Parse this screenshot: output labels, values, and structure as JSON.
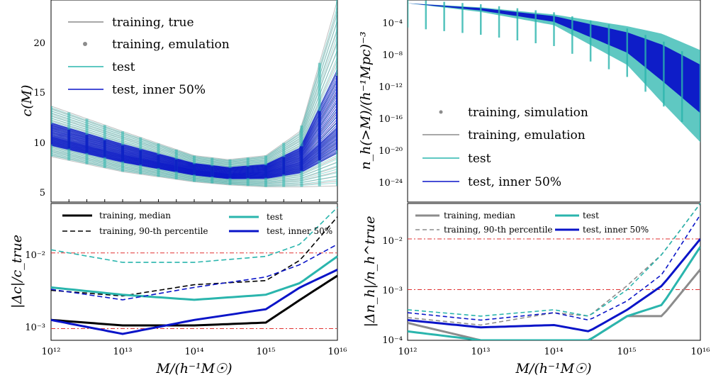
{
  "figure": {
    "xlabel": "M/(h⁻¹M☉)"
  },
  "colors": {
    "gray": "#8c8c8c",
    "teal": "#2ab5ad",
    "blue": "#0a14c8",
    "red": "#e03030",
    "black": "#000000"
  },
  "x_ticks": [
    "10¹²",
    "10¹³",
    "10¹⁴",
    "10¹⁵",
    "10¹⁶"
  ],
  "chart_data": [
    {
      "id": "c_of_M",
      "type": "line",
      "ylabel": "c(M)",
      "xscale": "log",
      "xlim": [
        1000000000000.0,
        1e+16
      ],
      "ylim": [
        4,
        24
      ],
      "yticks": [
        5,
        10,
        15,
        20
      ],
      "legend": [
        "training, true",
        "training, emulation",
        "test",
        "test, inner 50%"
      ],
      "series": [
        {
          "name": "test, inner 50% (center)",
          "x": [
            1000000000000.0,
            10000000000000.0,
            100000000000000.0,
            300000000000000.0,
            1000000000000000.0,
            3000000000000000.0,
            1e+16
          ],
          "y": [
            10.5,
            8.7,
            7.2,
            6.8,
            7.0,
            8.0,
            11.5
          ]
        },
        {
          "name": "test (upper envelope)",
          "x": [
            1000000000000.0,
            10000000000000.0,
            100000000000000.0,
            300000000000000.0,
            1000000000000000.0,
            3000000000000000.0,
            1e+16
          ],
          "y": [
            13.5,
            11.0,
            8.6,
            8.2,
            8.6,
            11,
            24
          ]
        },
        {
          "name": "test (lower envelope)",
          "x": [
            1000000000000.0,
            10000000000000.0,
            100000000000000.0,
            300000000000000.0,
            1000000000000000.0,
            3000000000000000.0,
            1e+16
          ],
          "y": [
            8.5,
            7.0,
            6.0,
            5.7,
            5.5,
            5.5,
            5.6
          ]
        }
      ]
    },
    {
      "id": "rel_err_c",
      "type": "line",
      "ylabel": "|Δc|/c_true",
      "xscale": "log",
      "yscale": "log",
      "xlim": [
        1000000000000.0,
        1e+16
      ],
      "ylim": [
        0.0007,
        0.045
      ],
      "ytick_labels": [
        "10⁻³",
        "10⁻²"
      ],
      "legend": [
        "training, median",
        "training, 90-th percentile",
        "test",
        "test, inner 50%"
      ],
      "series": [
        {
          "name": "training, median",
          "x": [
            1000000000000.0,
            10000000000000.0,
            100000000000000.0,
            1000000000000000.0,
            3000000000000000.0,
            1e+16
          ],
          "y": [
            0.0013,
            0.0011,
            0.0011,
            0.0012,
            0.0024,
            0.005
          ]
        },
        {
          "name": "training, 90-th percentile",
          "x": [
            1000000000000.0,
            10000000000000.0,
            100000000000000.0,
            1000000000000000.0,
            3000000000000000.0,
            1e+16
          ],
          "y": [
            0.0032,
            0.0027,
            0.0038,
            0.0043,
            0.008,
            0.03
          ]
        },
        {
          "name": "test",
          "x": [
            1000000000000.0,
            10000000000000.0,
            100000000000000.0,
            1000000000000000.0,
            3000000000000000.0,
            1e+16
          ],
          "y": [
            0.0035,
            0.0028,
            0.0024,
            0.0028,
            0.004,
            0.009
          ]
        },
        {
          "name": "test, inner 50%",
          "x": [
            1000000000000.0,
            10000000000000.0,
            100000000000000.0,
            1000000000000000.0,
            3000000000000000.0,
            1e+16
          ],
          "y": [
            0.0013,
            0.00085,
            0.0013,
            0.0018,
            0.0035,
            0.006
          ]
        },
        {
          "name": "test, 90-th percentile",
          "x": [
            1000000000000.0,
            10000000000000.0,
            100000000000000.0,
            1000000000000000.0,
            3000000000000000.0,
            1e+16
          ],
          "y": [
            0.011,
            0.0075,
            0.0075,
            0.009,
            0.013,
            0.04
          ]
        },
        {
          "name": "test, inner 50% (upper)",
          "x": [
            1000000000000.0,
            10000000000000.0,
            100000000000000.0,
            1000000000000000.0,
            3000000000000000.0,
            1e+16
          ],
          "y": [
            0.0033,
            0.0024,
            0.0035,
            0.0048,
            0.007,
            0.013
          ]
        }
      ],
      "hlines": [
        0.001,
        0.01
      ]
    },
    {
      "id": "n_h",
      "type": "line",
      "ylabel": "n_h(>M)/(h⁻¹Mpc)⁻³",
      "xscale": "log",
      "yscale": "log",
      "xlim": [
        1000000000000.0,
        1e+16
      ],
      "ylim": [
        1e-27,
        0.01
      ],
      "ytick_labels": [
        "10⁻⁴",
        "10⁻⁸",
        "10⁻¹²",
        "10⁻¹⁶",
        "10⁻²⁰",
        "10⁻²⁴"
      ],
      "legend": [
        "training, simulation",
        "training, emulation",
        "test",
        "test, inner 50%"
      ],
      "series": [
        {
          "name": "test, inner 50% (upper)",
          "x": [
            1000000000000.0,
            10000000000000.0,
            100000000000000.0,
            1000000000000000.0,
            3000000000000000.0,
            1e+16
          ],
          "y": [
            0.004,
            0.001,
            0.0001,
            1e-06,
            3e-08,
            1e-10
          ]
        },
        {
          "name": "test, inner 50% (lower)",
          "x": [
            1000000000000.0,
            10000000000000.0,
            100000000000000.0,
            1000000000000000.0,
            3000000000000000.0,
            1e+16
          ],
          "y": [
            0.004,
            0.0005,
            2e-05,
            3e-09,
            1e-12,
            1e-16
          ]
        }
      ]
    },
    {
      "id": "rel_err_nh",
      "type": "line",
      "ylabel": "|Δn_h|/n_h^true",
      "xscale": "log",
      "yscale": "log",
      "xlim": [
        1000000000000.0,
        1e+16
      ],
      "ylim": [
        0.0001,
        0.05
      ],
      "ytick_labels": [
        "10⁻⁴",
        "10⁻³",
        "10⁻²"
      ],
      "legend": [
        "training, median",
        "training, 90-th percentile",
        "test",
        "test, inner 50%"
      ],
      "series": [
        {
          "name": "training, median",
          "x": [
            1000000000000.0,
            10000000000000.0,
            100000000000000.0,
            300000000000000.0,
            1000000000000000.0,
            3000000000000000.0,
            1e+16
          ],
          "y": [
            0.00022,
            0.0001,
            0.0001,
            0.0001,
            0.0003,
            0.0003,
            0.0025
          ]
        },
        {
          "name": "training, 90-th percentile",
          "x": [
            1000000000000.0,
            10000000000000.0,
            100000000000000.0,
            300000000000000.0,
            1000000000000000.0,
            3000000000000000.0,
            1e+16
          ],
          "y": [
            0.00028,
            0.0002,
            0.00035,
            0.0003,
            0.0012,
            0.005,
            0.05
          ]
        },
        {
          "name": "test",
          "x": [
            1000000000000.0,
            10000000000000.0,
            100000000000000.0,
            300000000000000.0,
            1000000000000000.0,
            3000000000000000.0,
            1e+16
          ],
          "y": [
            0.00015,
            0.0001,
            0.0001,
            0.0001,
            0.0003,
            0.0005,
            0.007
          ]
        },
        {
          "name": "test, inner 50%",
          "x": [
            1000000000000.0,
            10000000000000.0,
            100000000000000.0,
            300000000000000.0,
            1000000000000000.0,
            3000000000000000.0,
            1e+16
          ],
          "y": [
            0.00025,
            0.00018,
            0.0002,
            0.00015,
            0.0004,
            0.0012,
            0.01
          ]
        },
        {
          "name": "test, 90-th percentile",
          "x": [
            1000000000000.0,
            10000000000000.0,
            100000000000000.0,
            300000000000000.0,
            1000000000000000.0,
            3000000000000000.0,
            1e+16
          ],
          "y": [
            0.0004,
            0.0003,
            0.0004,
            0.0003,
            0.001,
            0.005,
            0.05
          ]
        },
        {
          "name": "test, inner 50% (upper)",
          "x": [
            1000000000000.0,
            10000000000000.0,
            100000000000000.0,
            300000000000000.0,
            1000000000000000.0,
            3000000000000000.0,
            1e+16
          ],
          "y": [
            0.00035,
            0.00025,
            0.00035,
            0.00025,
            0.0006,
            0.002,
            0.03
          ]
        }
      ],
      "hlines": [
        0.001,
        0.01
      ]
    }
  ]
}
